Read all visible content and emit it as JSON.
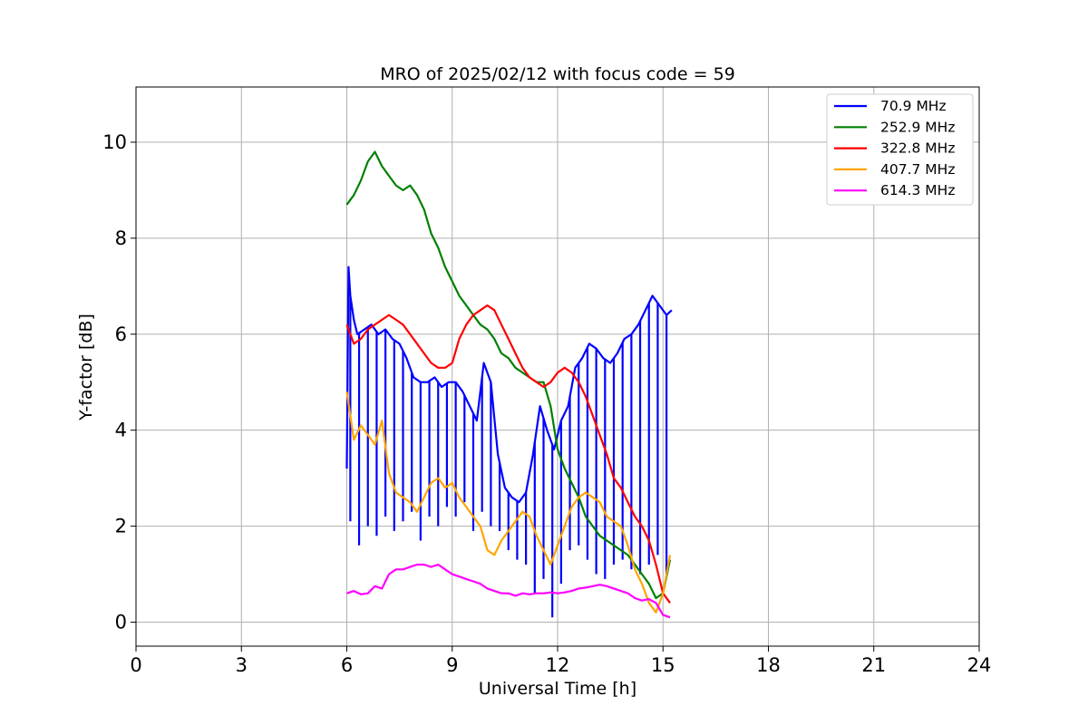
{
  "chart_data": {
    "type": "line",
    "title": "MRO of 2025/02/12 with focus code = 59",
    "xlabel": "Universal Time [h]",
    "ylabel": "Y-factor [dB]",
    "xlim": [
      0,
      24
    ],
    "ylim": [
      -0.5,
      11.15
    ],
    "xticks": [
      0,
      3,
      6,
      9,
      12,
      15,
      18,
      21,
      24
    ],
    "yticks": [
      0,
      2,
      4,
      6,
      8,
      10
    ],
    "grid": true,
    "legend_position": "upper-right",
    "series": [
      {
        "name": " 70.9 MHz",
        "color": "#0000ff",
        "x": [
          6.0,
          6.05,
          6.1,
          6.2,
          6.3,
          6.5,
          6.7,
          6.9,
          7.1,
          7.3,
          7.5,
          7.7,
          7.9,
          8.1,
          8.3,
          8.5,
          8.7,
          8.9,
          9.1,
          9.3,
          9.5,
          9.7,
          9.9,
          10.1,
          10.3,
          10.5,
          10.7,
          10.9,
          11.1,
          11.3,
          11.5,
          11.7,
          11.9,
          12.1,
          12.3,
          12.5,
          12.7,
          12.9,
          13.1,
          13.3,
          13.5,
          13.7,
          13.9,
          14.1,
          14.3,
          14.5,
          14.7,
          14.9,
          15.1,
          15.25
        ],
        "values": [
          3.2,
          7.4,
          6.8,
          6.3,
          6.0,
          6.1,
          6.2,
          6.0,
          6.1,
          5.9,
          5.8,
          5.5,
          5.1,
          5.0,
          5.0,
          5.1,
          4.9,
          5.0,
          5.0,
          4.8,
          4.5,
          4.2,
          5.4,
          5.0,
          3.5,
          2.8,
          2.6,
          2.5,
          2.7,
          3.5,
          4.5,
          4.0,
          3.6,
          4.2,
          4.5,
          5.3,
          5.5,
          5.8,
          5.7,
          5.5,
          5.4,
          5.6,
          5.9,
          6.0,
          6.2,
          6.5,
          6.8,
          6.6,
          6.4,
          6.5
        ],
        "dips": [
          6.1,
          6.35,
          6.6,
          6.85,
          7.1,
          7.35,
          7.6,
          7.85,
          8.1,
          8.35,
          8.6,
          8.85,
          9.1,
          9.35,
          9.6,
          9.85,
          10.1,
          10.35,
          10.6,
          10.85,
          11.1,
          11.35,
          11.6,
          11.85,
          12.1,
          12.35,
          12.6,
          12.85,
          13.1,
          13.35,
          13.6,
          13.85,
          14.1,
          14.35,
          14.6,
          14.85,
          15.1
        ],
        "dip_values": [
          2.1,
          1.6,
          2.0,
          1.8,
          2.2,
          1.9,
          2.1,
          2.3,
          1.7,
          2.2,
          2.0,
          2.4,
          2.2,
          2.5,
          1.9,
          2.3,
          2.0,
          1.9,
          1.5,
          1.3,
          1.2,
          0.6,
          0.9,
          0.1,
          0.8,
          1.5,
          1.6,
          1.3,
          1.0,
          0.9,
          1.2,
          1.3,
          1.1,
          1.0,
          1.2,
          1.4,
          1.0
        ]
      },
      {
        "name": "252.9 MHz",
        "color": "#008000",
        "x": [
          6.0,
          6.2,
          6.4,
          6.6,
          6.8,
          7.0,
          7.2,
          7.4,
          7.6,
          7.8,
          8.0,
          8.2,
          8.4,
          8.6,
          8.8,
          9.0,
          9.2,
          9.4,
          9.6,
          9.8,
          10.0,
          10.2,
          10.4,
          10.6,
          10.8,
          11.0,
          11.2,
          11.4,
          11.6,
          11.8,
          12.0,
          12.2,
          12.4,
          12.6,
          12.8,
          13.0,
          13.2,
          13.4,
          13.6,
          13.8,
          14.0,
          14.2,
          14.4,
          14.6,
          14.8,
          15.0,
          15.2
        ],
        "values": [
          8.7,
          8.9,
          9.2,
          9.6,
          9.8,
          9.5,
          9.3,
          9.1,
          9.0,
          9.1,
          8.9,
          8.6,
          8.1,
          7.8,
          7.4,
          7.1,
          6.8,
          6.6,
          6.4,
          6.2,
          6.1,
          5.9,
          5.6,
          5.5,
          5.3,
          5.2,
          5.1,
          5.0,
          5.0,
          4.5,
          3.6,
          3.2,
          2.9,
          2.6,
          2.2,
          2.0,
          1.8,
          1.7,
          1.6,
          1.5,
          1.4,
          1.2,
          1.0,
          0.8,
          0.5,
          0.6,
          1.3
        ]
      },
      {
        "name": "322.8 MHz",
        "color": "#ff0000",
        "x": [
          6.0,
          6.2,
          6.4,
          6.6,
          6.8,
          7.0,
          7.2,
          7.4,
          7.6,
          7.8,
          8.0,
          8.2,
          8.4,
          8.6,
          8.8,
          9.0,
          9.2,
          9.4,
          9.6,
          9.8,
          10.0,
          10.2,
          10.4,
          10.6,
          10.8,
          11.0,
          11.2,
          11.4,
          11.6,
          11.8,
          12.0,
          12.2,
          12.4,
          12.6,
          12.8,
          13.0,
          13.2,
          13.4,
          13.6,
          13.8,
          14.0,
          14.2,
          14.4,
          14.6,
          14.8,
          15.0,
          15.2
        ],
        "values": [
          6.2,
          5.8,
          5.9,
          6.1,
          6.2,
          6.3,
          6.4,
          6.3,
          6.2,
          6.0,
          5.8,
          5.6,
          5.4,
          5.3,
          5.3,
          5.4,
          5.9,
          6.2,
          6.4,
          6.5,
          6.6,
          6.5,
          6.2,
          5.9,
          5.6,
          5.3,
          5.1,
          5.0,
          4.9,
          5.0,
          5.2,
          5.3,
          5.2,
          5.0,
          4.7,
          4.3,
          3.9,
          3.5,
          3.0,
          2.8,
          2.5,
          2.2,
          2.0,
          1.7,
          1.2,
          0.6,
          0.4
        ]
      },
      {
        "name": "407.7 MHz",
        "color": "#ffa500",
        "x": [
          6.0,
          6.1,
          6.2,
          6.4,
          6.6,
          6.8,
          7.0,
          7.2,
          7.4,
          7.6,
          7.8,
          8.0,
          8.2,
          8.4,
          8.6,
          8.8,
          9.0,
          9.2,
          9.4,
          9.6,
          9.8,
          10.0,
          10.2,
          10.4,
          10.6,
          10.8,
          11.0,
          11.2,
          11.4,
          11.6,
          11.8,
          12.0,
          12.2,
          12.4,
          12.6,
          12.8,
          13.0,
          13.2,
          13.4,
          13.6,
          13.8,
          14.0,
          14.2,
          14.4,
          14.6,
          14.8,
          15.0,
          15.2
        ],
        "values": [
          4.8,
          4.3,
          3.8,
          4.1,
          3.9,
          3.7,
          4.2,
          3.1,
          2.7,
          2.6,
          2.5,
          2.3,
          2.6,
          2.9,
          3.0,
          2.8,
          2.9,
          2.6,
          2.4,
          2.2,
          2.0,
          1.5,
          1.4,
          1.7,
          1.9,
          2.1,
          2.3,
          2.2,
          1.8,
          1.5,
          1.2,
          1.6,
          2.0,
          2.4,
          2.6,
          2.7,
          2.6,
          2.5,
          2.2,
          2.1,
          2.0,
          1.6,
          1.1,
          0.8,
          0.4,
          0.2,
          0.6,
          1.4
        ]
      },
      {
        "name": "614.3 MHz",
        "color": "#ff00ff",
        "x": [
          6.0,
          6.2,
          6.4,
          6.6,
          6.8,
          7.0,
          7.2,
          7.4,
          7.6,
          7.8,
          8.0,
          8.2,
          8.4,
          8.6,
          8.8,
          9.0,
          9.2,
          9.4,
          9.6,
          9.8,
          10.0,
          10.2,
          10.4,
          10.6,
          10.8,
          11.0,
          11.2,
          11.4,
          11.6,
          11.8,
          12.0,
          12.2,
          12.4,
          12.6,
          12.8,
          13.0,
          13.2,
          13.4,
          13.6,
          13.8,
          14.0,
          14.2,
          14.4,
          14.6,
          14.8,
          15.0,
          15.2
        ],
        "values": [
          0.6,
          0.65,
          0.58,
          0.6,
          0.75,
          0.7,
          1.0,
          1.1,
          1.1,
          1.15,
          1.2,
          1.2,
          1.15,
          1.2,
          1.1,
          1.0,
          0.95,
          0.9,
          0.85,
          0.8,
          0.7,
          0.65,
          0.6,
          0.6,
          0.55,
          0.6,
          0.58,
          0.6,
          0.6,
          0.62,
          0.6,
          0.62,
          0.65,
          0.7,
          0.72,
          0.75,
          0.78,
          0.75,
          0.7,
          0.65,
          0.6,
          0.5,
          0.45,
          0.48,
          0.4,
          0.15,
          0.1
        ]
      }
    ]
  }
}
